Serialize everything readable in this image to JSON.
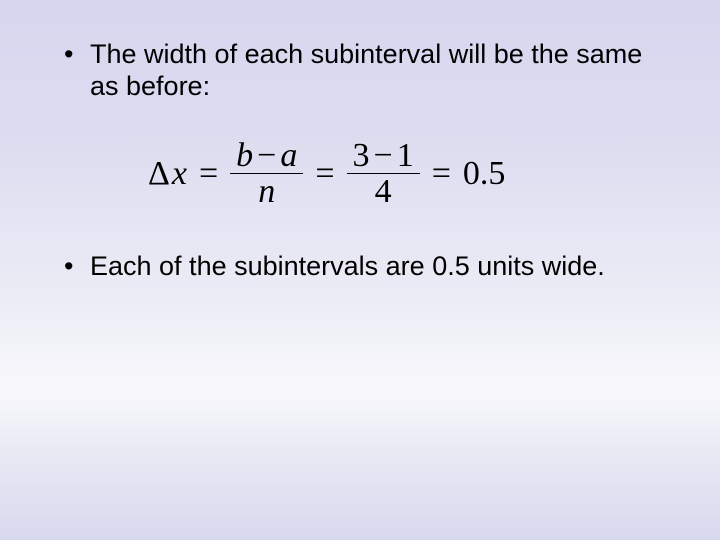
{
  "slide": {
    "background_gradient": [
      "#d6d6ef",
      "#dcdcf0",
      "#ececf6",
      "#f8f8fc",
      "#e8e8f4",
      "#d8d8ef"
    ],
    "bullets": [
      "The width of each subinterval will be the same as before:",
      "Each of the subintervals are 0.5 units wide."
    ],
    "bullet_fontsize": 27,
    "bullet_color": "#000000",
    "equation": {
      "lhs_delta": "Δ",
      "lhs_var": "x",
      "eq": "=",
      "frac1_num_b": "b",
      "frac1_num_minus": "−",
      "frac1_num_a": "a",
      "frac1_den": "n",
      "frac2_num_left": "3",
      "frac2_num_minus": "−",
      "frac2_num_right": "1",
      "frac2_den": "4",
      "result": "0.5",
      "font_family": "Times New Roman",
      "fontsize": 34,
      "color": "#000000"
    }
  }
}
